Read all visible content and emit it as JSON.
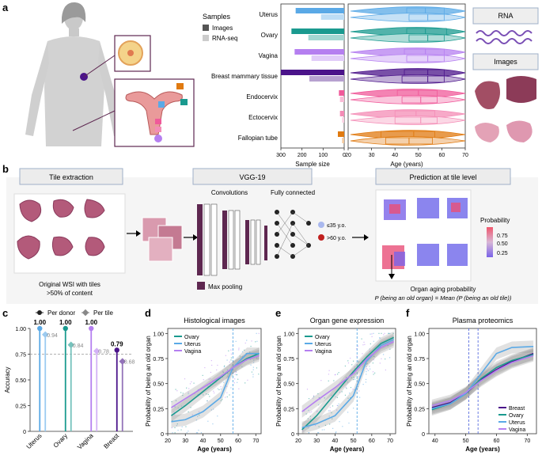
{
  "panel_letters": {
    "a": "a",
    "b": "b",
    "c": "c",
    "d": "d",
    "e": "e",
    "f": "f"
  },
  "colors": {
    "uterus": "#5aa9e6",
    "ovary": "#1a9a8f",
    "vagina": "#b57ff0",
    "breast": "#4b148a",
    "endocervix": "#f05a9a",
    "ectocervix": "#f48cb6",
    "fallopian": "#e07a10",
    "gray_box": "#eeeeee",
    "box_border": "#9fb0c8",
    "dark_purple": "#5e2750"
  },
  "panel_a": {
    "legend": {
      "title": "Samples",
      "items": [
        {
          "label": "Images",
          "color": "#555555"
        },
        {
          "label": "RNA-seq",
          "color": "#cccccc"
        }
      ]
    },
    "right_labels": {
      "rna": "RNA",
      "images": "Images"
    },
    "bar_chart": {
      "type": "bar",
      "categories": [
        "Uterus",
        "Ovary",
        "Vagina",
        "Breast mammary tissue",
        "Endocervix",
        "Ectocervix",
        "Fallopian tube"
      ],
      "series": [
        {
          "name": "Images",
          "values": [
            230,
            250,
            235,
            300,
            25,
            20,
            30
          ]
        },
        {
          "name": "RNA-seq",
          "values": [
            110,
            170,
            155,
            165,
            20,
            10,
            10
          ]
        }
      ],
      "xlabel": "Sample size",
      "xticks": [
        "300",
        "200",
        "100",
        "0"
      ],
      "xlim": [
        0,
        300
      ]
    },
    "violin_chart": {
      "type": "violin",
      "categories": [
        "Uterus",
        "Ovary",
        "Vagina",
        "Breast mammary tissue",
        "Endocervix",
        "Ectocervix",
        "Fallopian tube"
      ],
      "box_images": [
        [
          45,
          53,
          61
        ],
        [
          45,
          53,
          62
        ],
        [
          44,
          53,
          61
        ],
        [
          44,
          54,
          61
        ],
        [
          41,
          50,
          58
        ],
        [
          40,
          49,
          57
        ],
        [
          34,
          48,
          57
        ]
      ],
      "box_rnaseq": [
        [
          46,
          54,
          61
        ],
        [
          46,
          54,
          61
        ],
        [
          45,
          54,
          61
        ],
        [
          43,
          54,
          61
        ],
        [
          43,
          51,
          58
        ],
        [
          40,
          51,
          58
        ],
        [
          36,
          46,
          56
        ]
      ],
      "xlabel": "Age (years)",
      "xticks": [
        "20",
        "30",
        "40",
        "50",
        "60",
        "70"
      ],
      "xlim": [
        20,
        70
      ]
    }
  },
  "panel_b": {
    "tile_extraction": "Tile extraction",
    "wsi_caption_1": "Original WSI with tiles",
    "wsi_caption_2": ">50% of content",
    "vgg": "VGG-19",
    "convolutions": "Convolutions",
    "fully_connected": "Fully connected",
    "max_pooling": "Max pooling",
    "young": "≤35 y.o.",
    "old": ">60 y.o.",
    "prediction": "Prediction at tile level",
    "probability": "Probability",
    "prob_ticks": [
      "0.75",
      "0.50",
      "0.25"
    ],
    "organ_aging_title": "Organ aging probability",
    "formula": "P (being an old organ) = Mean (P (being an old tile))"
  },
  "panel_c": {
    "chart_data": {
      "type": "lollipop",
      "categories": [
        "Uterus",
        "Ovary",
        "Vagina",
        "Breast"
      ],
      "series": [
        {
          "name": "Per donor",
          "values": [
            1.0,
            1.0,
            1.0,
            0.79
          ]
        },
        {
          "name": "Per tile",
          "values": [
            0.94,
            0.84,
            0.78,
            0.68
          ]
        }
      ],
      "labels_donor": [
        "1.00",
        "1.00",
        "1.00",
        "0.79"
      ],
      "labels_tile": [
        "0.94",
        "0.84",
        "0.78",
        "0.68"
      ],
      "ylabel": "Accuracy",
      "ylim": [
        0,
        1.0
      ],
      "yticks": [
        "0",
        "0.25",
        "0.50",
        "0.75",
        "1.00"
      ],
      "reference_line": 0.75
    }
  },
  "panel_d": {
    "chart_data": {
      "type": "line",
      "title": "Histological images",
      "xlabel": "Age (years)",
      "ylabel": "Probability of being an old organ",
      "xlim": [
        20,
        73
      ],
      "ylim": [
        0,
        1.05
      ],
      "xticks": [
        "20",
        "30",
        "40",
        "50",
        "60",
        "70"
      ],
      "yticks": [
        "0",
        "0.25",
        "0.50",
        "0.75",
        "1.00"
      ],
      "vline": 57,
      "series": [
        {
          "name": "Ovary",
          "color": "#1a9a8f",
          "x": [
            22,
            30,
            40,
            50,
            57,
            65,
            72
          ],
          "y": [
            0.18,
            0.28,
            0.42,
            0.56,
            0.66,
            0.75,
            0.8
          ]
        },
        {
          "name": "Uterus",
          "color": "#5aa9e6",
          "x": [
            22,
            30,
            40,
            50,
            57,
            65,
            72
          ],
          "y": [
            0.12,
            0.14,
            0.22,
            0.36,
            0.66,
            0.8,
            0.8
          ]
        },
        {
          "name": "Vagina",
          "color": "#b57ff0",
          "x": [
            22,
            30,
            40,
            50,
            57,
            65,
            72
          ],
          "y": [
            0.26,
            0.35,
            0.46,
            0.57,
            0.66,
            0.74,
            0.78
          ]
        }
      ]
    }
  },
  "panel_e": {
    "chart_data": {
      "type": "line",
      "title": "Organ gene expression",
      "xlabel": "Age (years)",
      "ylabel": "Probability of being an old organ",
      "xlim": [
        20,
        73
      ],
      "ylim": [
        0,
        1.05
      ],
      "xticks": [
        "20",
        "30",
        "40",
        "50",
        "60",
        "70"
      ],
      "yticks": [
        "0",
        "0.25",
        "0.50",
        "0.75",
        "1.00"
      ],
      "vline": 52,
      "series": [
        {
          "name": "Ovary",
          "color": "#1a9a8f",
          "x": [
            22,
            30,
            40,
            50,
            57,
            65,
            72
          ],
          "y": [
            0.04,
            0.18,
            0.4,
            0.62,
            0.76,
            0.9,
            0.96
          ]
        },
        {
          "name": "Uterus",
          "color": "#5aa9e6",
          "x": [
            22,
            30,
            40,
            50,
            57,
            65,
            72
          ],
          "y": [
            0.06,
            0.1,
            0.18,
            0.38,
            0.72,
            0.88,
            0.94
          ]
        },
        {
          "name": "Vagina",
          "color": "#b57ff0",
          "x": [
            22,
            30,
            40,
            50,
            57,
            65,
            72
          ],
          "y": [
            0.22,
            0.33,
            0.46,
            0.6,
            0.74,
            0.86,
            0.92
          ]
        }
      ]
    }
  },
  "panel_f": {
    "chart_data": {
      "type": "line",
      "title": "Plasma proteomics",
      "xlabel": "Age (years)",
      "ylabel": "Probability of being an old organ",
      "xlim": [
        38,
        73
      ],
      "ylim": [
        0,
        1.05
      ],
      "xticks": [
        "40",
        "50",
        "60",
        "70"
      ],
      "yticks": [
        "0",
        "0.25",
        "0.50",
        "0.75",
        "1.00"
      ],
      "vlines": [
        51,
        54
      ],
      "series": [
        {
          "name": "Breast",
          "color": "#4b148a",
          "x": [
            39,
            45,
            50,
            55,
            60,
            65,
            72
          ],
          "y": [
            0.26,
            0.31,
            0.4,
            0.54,
            0.64,
            0.72,
            0.8
          ]
        },
        {
          "name": "Ovary",
          "color": "#1a9a8f",
          "x": [
            39,
            45,
            50,
            55,
            60,
            65,
            72
          ],
          "y": [
            0.24,
            0.3,
            0.4,
            0.55,
            0.66,
            0.73,
            0.79
          ]
        },
        {
          "name": "Uterus",
          "color": "#5aa9e6",
          "x": [
            39,
            45,
            50,
            55,
            60,
            65,
            72
          ],
          "y": [
            0.25,
            0.3,
            0.4,
            0.6,
            0.8,
            0.86,
            0.87
          ]
        },
        {
          "name": "Vagina",
          "color": "#b57ff0",
          "x": [
            39,
            45,
            50,
            55,
            60,
            65,
            72
          ],
          "y": [
            0.28,
            0.33,
            0.41,
            0.53,
            0.63,
            0.71,
            0.78
          ]
        }
      ]
    }
  }
}
